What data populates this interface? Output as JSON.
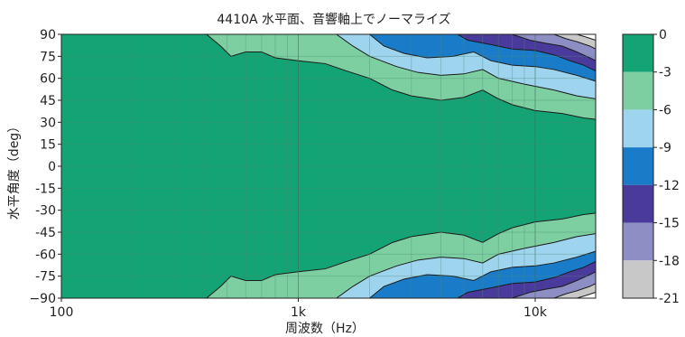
{
  "chart_data": {
    "type": "heatmap",
    "title": "4410A 水平面、音響軸上でノーマライズ",
    "xlabel": "周波数（Hz）",
    "ylabel": "水平角度（deg）",
    "x_scale": "log",
    "xlim": [
      100,
      18000
    ],
    "ylim": [
      -90,
      90
    ],
    "x_ticks": [
      {
        "value": 100,
        "label": "100"
      },
      {
        "value": 1000,
        "label": "1k"
      },
      {
        "value": 10000,
        "label": "10k"
      }
    ],
    "y_ticks": [
      90,
      75,
      60,
      45,
      30,
      15,
      0,
      -15,
      -30,
      -45,
      -60,
      -75,
      -90
    ],
    "y_tick_labels": [
      "90",
      "75",
      "60",
      "45",
      "30",
      "15",
      "0",
      "-15",
      "-30",
      "-45",
      "-60",
      "-75",
      "−90"
    ],
    "colorbar": {
      "ticks": [
        "0",
        "-3",
        "-6",
        "-9",
        "-12",
        "-15",
        "-18",
        "-21"
      ],
      "levels": [
        {
          "from": 0,
          "to": -3,
          "color": "#14a374"
        },
        {
          "from": -3,
          "to": -6,
          "color": "#7dcfa1"
        },
        {
          "from": -6,
          "to": -9,
          "color": "#9fd4ee"
        },
        {
          "from": -9,
          "to": -12,
          "color": "#1a7bc8"
        },
        {
          "from": -12,
          "to": -15,
          "color": "#4a3a9b"
        },
        {
          "from": -15,
          "to": -18,
          "color": "#8d8fc4"
        },
        {
          "from": -18,
          "to": -21,
          "color": "#c8c8c8"
        },
        {
          "from": -21,
          "to": -24,
          "color": "#ffffff"
        }
      ]
    },
    "contours": [
      {
        "level": -3,
        "points": [
          [
            410,
            90
          ],
          [
            470,
            82
          ],
          [
            520,
            75
          ],
          [
            600,
            78
          ],
          [
            700,
            78
          ],
          [
            800,
            74
          ],
          [
            1000,
            72
          ],
          [
            1300,
            70
          ],
          [
            1600,
            65
          ],
          [
            2000,
            60
          ],
          [
            2500,
            52
          ],
          [
            3000,
            48
          ],
          [
            4000,
            45
          ],
          [
            5000,
            47
          ],
          [
            6000,
            52
          ],
          [
            7000,
            46
          ],
          [
            8000,
            42
          ],
          [
            10000,
            38
          ],
          [
            13000,
            36
          ],
          [
            16000,
            33
          ],
          [
            18000,
            32
          ]
        ]
      },
      {
        "level": -6,
        "points": [
          [
            1450,
            90
          ],
          [
            1700,
            82
          ],
          [
            2000,
            75
          ],
          [
            2600,
            68
          ],
          [
            3200,
            64
          ],
          [
            4000,
            62
          ],
          [
            5000,
            63
          ],
          [
            6000,
            66
          ],
          [
            7000,
            60
          ],
          [
            9000,
            56
          ],
          [
            12000,
            52
          ],
          [
            15000,
            48
          ],
          [
            18000,
            46
          ]
        ]
      },
      {
        "level": -9,
        "points": [
          [
            2000,
            90
          ],
          [
            2300,
            82
          ],
          [
            2800,
            77
          ],
          [
            3500,
            74
          ],
          [
            4500,
            75
          ],
          [
            5500,
            78
          ],
          [
            6500,
            72
          ],
          [
            8000,
            69
          ],
          [
            10000,
            68
          ],
          [
            12000,
            66
          ],
          [
            15000,
            62
          ],
          [
            18000,
            58
          ]
        ]
      },
      {
        "level": -12,
        "points": [
          [
            4700,
            90
          ],
          [
            5200,
            86
          ],
          [
            6500,
            83
          ],
          [
            8000,
            80
          ],
          [
            10000,
            79
          ],
          [
            12000,
            76
          ],
          [
            14000,
            72
          ],
          [
            16000,
            69
          ],
          [
            18000,
            65
          ]
        ]
      },
      {
        "level": -15,
        "points": [
          [
            8000,
            90
          ],
          [
            9500,
            86
          ],
          [
            11000,
            84
          ],
          [
            13000,
            82
          ],
          [
            15000,
            78
          ],
          [
            17000,
            74
          ],
          [
            18000,
            72
          ]
        ]
      },
      {
        "level": -18,
        "points": [
          [
            12000,
            90
          ],
          [
            13500,
            87
          ],
          [
            15000,
            85
          ],
          [
            17000,
            82
          ],
          [
            18000,
            80
          ]
        ]
      },
      {
        "level": -21,
        "points": [
          [
            15000,
            90
          ],
          [
            16500,
            88
          ],
          [
            18000,
            86
          ]
        ]
      }
    ],
    "symmetric_about_zero": true
  }
}
